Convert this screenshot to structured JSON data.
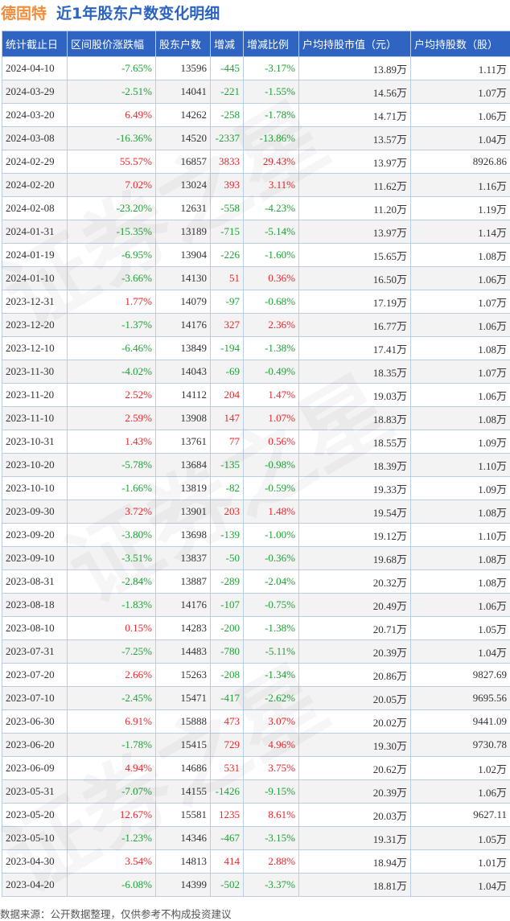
{
  "header": {
    "stock_name": "德固特",
    "title": "近1年股东户数变化明细"
  },
  "colors": {
    "header_bg": "#2f64c3",
    "positive": "#e8262b",
    "negative": "#22a038",
    "title_stock": "#f28c3b",
    "title_main": "#2c63c3"
  },
  "table": {
    "columns": [
      "统计截止日",
      "区间股价涨跌幅",
      "股东户数",
      "增减",
      "增减比例",
      "户均持股市值（元）",
      "户均持股数（股）"
    ],
    "rows": [
      {
        "date": "2024-04-10",
        "price_change": "-7.65%",
        "holders": "13596",
        "change": "-445",
        "change_pct": "-3.17%",
        "avg_value": "13.89万",
        "avg_shares": "1.11万"
      },
      {
        "date": "2024-03-29",
        "price_change": "-2.51%",
        "holders": "14041",
        "change": "-221",
        "change_pct": "-1.55%",
        "avg_value": "14.56万",
        "avg_shares": "1.07万"
      },
      {
        "date": "2024-03-20",
        "price_change": "6.49%",
        "holders": "14262",
        "change": "-258",
        "change_pct": "-1.78%",
        "avg_value": "14.71万",
        "avg_shares": "1.06万"
      },
      {
        "date": "2024-03-08",
        "price_change": "-16.36%",
        "holders": "14520",
        "change": "-2337",
        "change_pct": "-13.86%",
        "avg_value": "13.57万",
        "avg_shares": "1.04万"
      },
      {
        "date": "2024-02-29",
        "price_change": "55.57%",
        "holders": "16857",
        "change": "3833",
        "change_pct": "29.43%",
        "avg_value": "13.97万",
        "avg_shares": "8926.86"
      },
      {
        "date": "2024-02-20",
        "price_change": "7.02%",
        "holders": "13024",
        "change": "393",
        "change_pct": "3.11%",
        "avg_value": "11.62万",
        "avg_shares": "1.16万"
      },
      {
        "date": "2024-02-08",
        "price_change": "-23.20%",
        "holders": "12631",
        "change": "-558",
        "change_pct": "-4.23%",
        "avg_value": "11.20万",
        "avg_shares": "1.19万"
      },
      {
        "date": "2024-01-31",
        "price_change": "-15.35%",
        "holders": "13189",
        "change": "-715",
        "change_pct": "-5.14%",
        "avg_value": "13.97万",
        "avg_shares": "1.14万"
      },
      {
        "date": "2024-01-19",
        "price_change": "-6.95%",
        "holders": "13904",
        "change": "-226",
        "change_pct": "-1.60%",
        "avg_value": "15.65万",
        "avg_shares": "1.08万"
      },
      {
        "date": "2024-01-10",
        "price_change": "-3.66%",
        "holders": "14130",
        "change": "51",
        "change_pct": "0.36%",
        "avg_value": "16.50万",
        "avg_shares": "1.06万"
      },
      {
        "date": "2023-12-31",
        "price_change": "1.77%",
        "holders": "14079",
        "change": "-97",
        "change_pct": "-0.68%",
        "avg_value": "17.19万",
        "avg_shares": "1.07万"
      },
      {
        "date": "2023-12-20",
        "price_change": "-1.37%",
        "holders": "14176",
        "change": "327",
        "change_pct": "2.36%",
        "avg_value": "16.77万",
        "avg_shares": "1.06万"
      },
      {
        "date": "2023-12-10",
        "price_change": "-6.46%",
        "holders": "13849",
        "change": "-194",
        "change_pct": "-1.38%",
        "avg_value": "17.41万",
        "avg_shares": "1.08万"
      },
      {
        "date": "2023-11-30",
        "price_change": "-4.02%",
        "holders": "14043",
        "change": "-69",
        "change_pct": "-0.49%",
        "avg_value": "18.35万",
        "avg_shares": "1.07万"
      },
      {
        "date": "2023-11-20",
        "price_change": "2.52%",
        "holders": "14112",
        "change": "204",
        "change_pct": "1.47%",
        "avg_value": "19.03万",
        "avg_shares": "1.06万"
      },
      {
        "date": "2023-11-10",
        "price_change": "2.59%",
        "holders": "13908",
        "change": "147",
        "change_pct": "1.07%",
        "avg_value": "18.83万",
        "avg_shares": "1.08万"
      },
      {
        "date": "2023-10-31",
        "price_change": "1.43%",
        "holders": "13761",
        "change": "77",
        "change_pct": "0.56%",
        "avg_value": "18.55万",
        "avg_shares": "1.09万"
      },
      {
        "date": "2023-10-20",
        "price_change": "-5.78%",
        "holders": "13684",
        "change": "-135",
        "change_pct": "-0.98%",
        "avg_value": "18.39万",
        "avg_shares": "1.10万"
      },
      {
        "date": "2023-10-10",
        "price_change": "-1.66%",
        "holders": "13819",
        "change": "-82",
        "change_pct": "-0.59%",
        "avg_value": "19.33万",
        "avg_shares": "1.09万"
      },
      {
        "date": "2023-09-30",
        "price_change": "3.72%",
        "holders": "13901",
        "change": "203",
        "change_pct": "1.48%",
        "avg_value": "19.54万",
        "avg_shares": "1.08万"
      },
      {
        "date": "2023-09-20",
        "price_change": "-3.80%",
        "holders": "13698",
        "change": "-139",
        "change_pct": "-1.00%",
        "avg_value": "19.12万",
        "avg_shares": "1.10万"
      },
      {
        "date": "2023-09-10",
        "price_change": "-3.51%",
        "holders": "13837",
        "change": "-50",
        "change_pct": "-0.36%",
        "avg_value": "19.68万",
        "avg_shares": "1.08万"
      },
      {
        "date": "2023-08-31",
        "price_change": "-2.84%",
        "holders": "13887",
        "change": "-289",
        "change_pct": "-2.04%",
        "avg_value": "20.32万",
        "avg_shares": "1.08万"
      },
      {
        "date": "2023-08-18",
        "price_change": "-1.83%",
        "holders": "14176",
        "change": "-107",
        "change_pct": "-0.75%",
        "avg_value": "20.49万",
        "avg_shares": "1.06万"
      },
      {
        "date": "2023-08-10",
        "price_change": "0.15%",
        "holders": "14283",
        "change": "-200",
        "change_pct": "-1.38%",
        "avg_value": "20.71万",
        "avg_shares": "1.05万"
      },
      {
        "date": "2023-07-31",
        "price_change": "-7.25%",
        "holders": "14483",
        "change": "-780",
        "change_pct": "-5.11%",
        "avg_value": "20.39万",
        "avg_shares": "1.04万"
      },
      {
        "date": "2023-07-20",
        "price_change": "2.66%",
        "holders": "15263",
        "change": "-208",
        "change_pct": "-1.34%",
        "avg_value": "20.86万",
        "avg_shares": "9827.69"
      },
      {
        "date": "2023-07-10",
        "price_change": "-2.45%",
        "holders": "15471",
        "change": "-417",
        "change_pct": "-2.62%",
        "avg_value": "20.05万",
        "avg_shares": "9695.56"
      },
      {
        "date": "2023-06-30",
        "price_change": "6.91%",
        "holders": "15888",
        "change": "473",
        "change_pct": "3.07%",
        "avg_value": "20.02万",
        "avg_shares": "9441.09"
      },
      {
        "date": "2023-06-20",
        "price_change": "-1.78%",
        "holders": "15415",
        "change": "729",
        "change_pct": "4.96%",
        "avg_value": "19.30万",
        "avg_shares": "9730.78"
      },
      {
        "date": "2023-06-09",
        "price_change": "4.94%",
        "holders": "14686",
        "change": "531",
        "change_pct": "3.75%",
        "avg_value": "20.62万",
        "avg_shares": "1.02万"
      },
      {
        "date": "2023-05-31",
        "price_change": "-7.07%",
        "holders": "14155",
        "change": "-1426",
        "change_pct": "-9.15%",
        "avg_value": "20.39万",
        "avg_shares": "1.06万"
      },
      {
        "date": "2023-05-20",
        "price_change": "12.67%",
        "holders": "15581",
        "change": "1235",
        "change_pct": "8.61%",
        "avg_value": "20.03万",
        "avg_shares": "9627.11"
      },
      {
        "date": "2023-05-10",
        "price_change": "-1.23%",
        "holders": "14346",
        "change": "-467",
        "change_pct": "-3.15%",
        "avg_value": "19.31万",
        "avg_shares": "1.05万"
      },
      {
        "date": "2023-04-30",
        "price_change": "3.54%",
        "holders": "14813",
        "change": "414",
        "change_pct": "2.88%",
        "avg_value": "18.94万",
        "avg_shares": "1.01万"
      },
      {
        "date": "2023-04-20",
        "price_change": "-6.08%",
        "holders": "14399",
        "change": "-502",
        "change_pct": "-3.37%",
        "avg_value": "18.81万",
        "avg_shares": "1.04万"
      }
    ]
  },
  "footer": {
    "source": "数据来源：公开数据整理，仅供参考不构成投资建议"
  },
  "watermark": {
    "text": "证券之星"
  }
}
